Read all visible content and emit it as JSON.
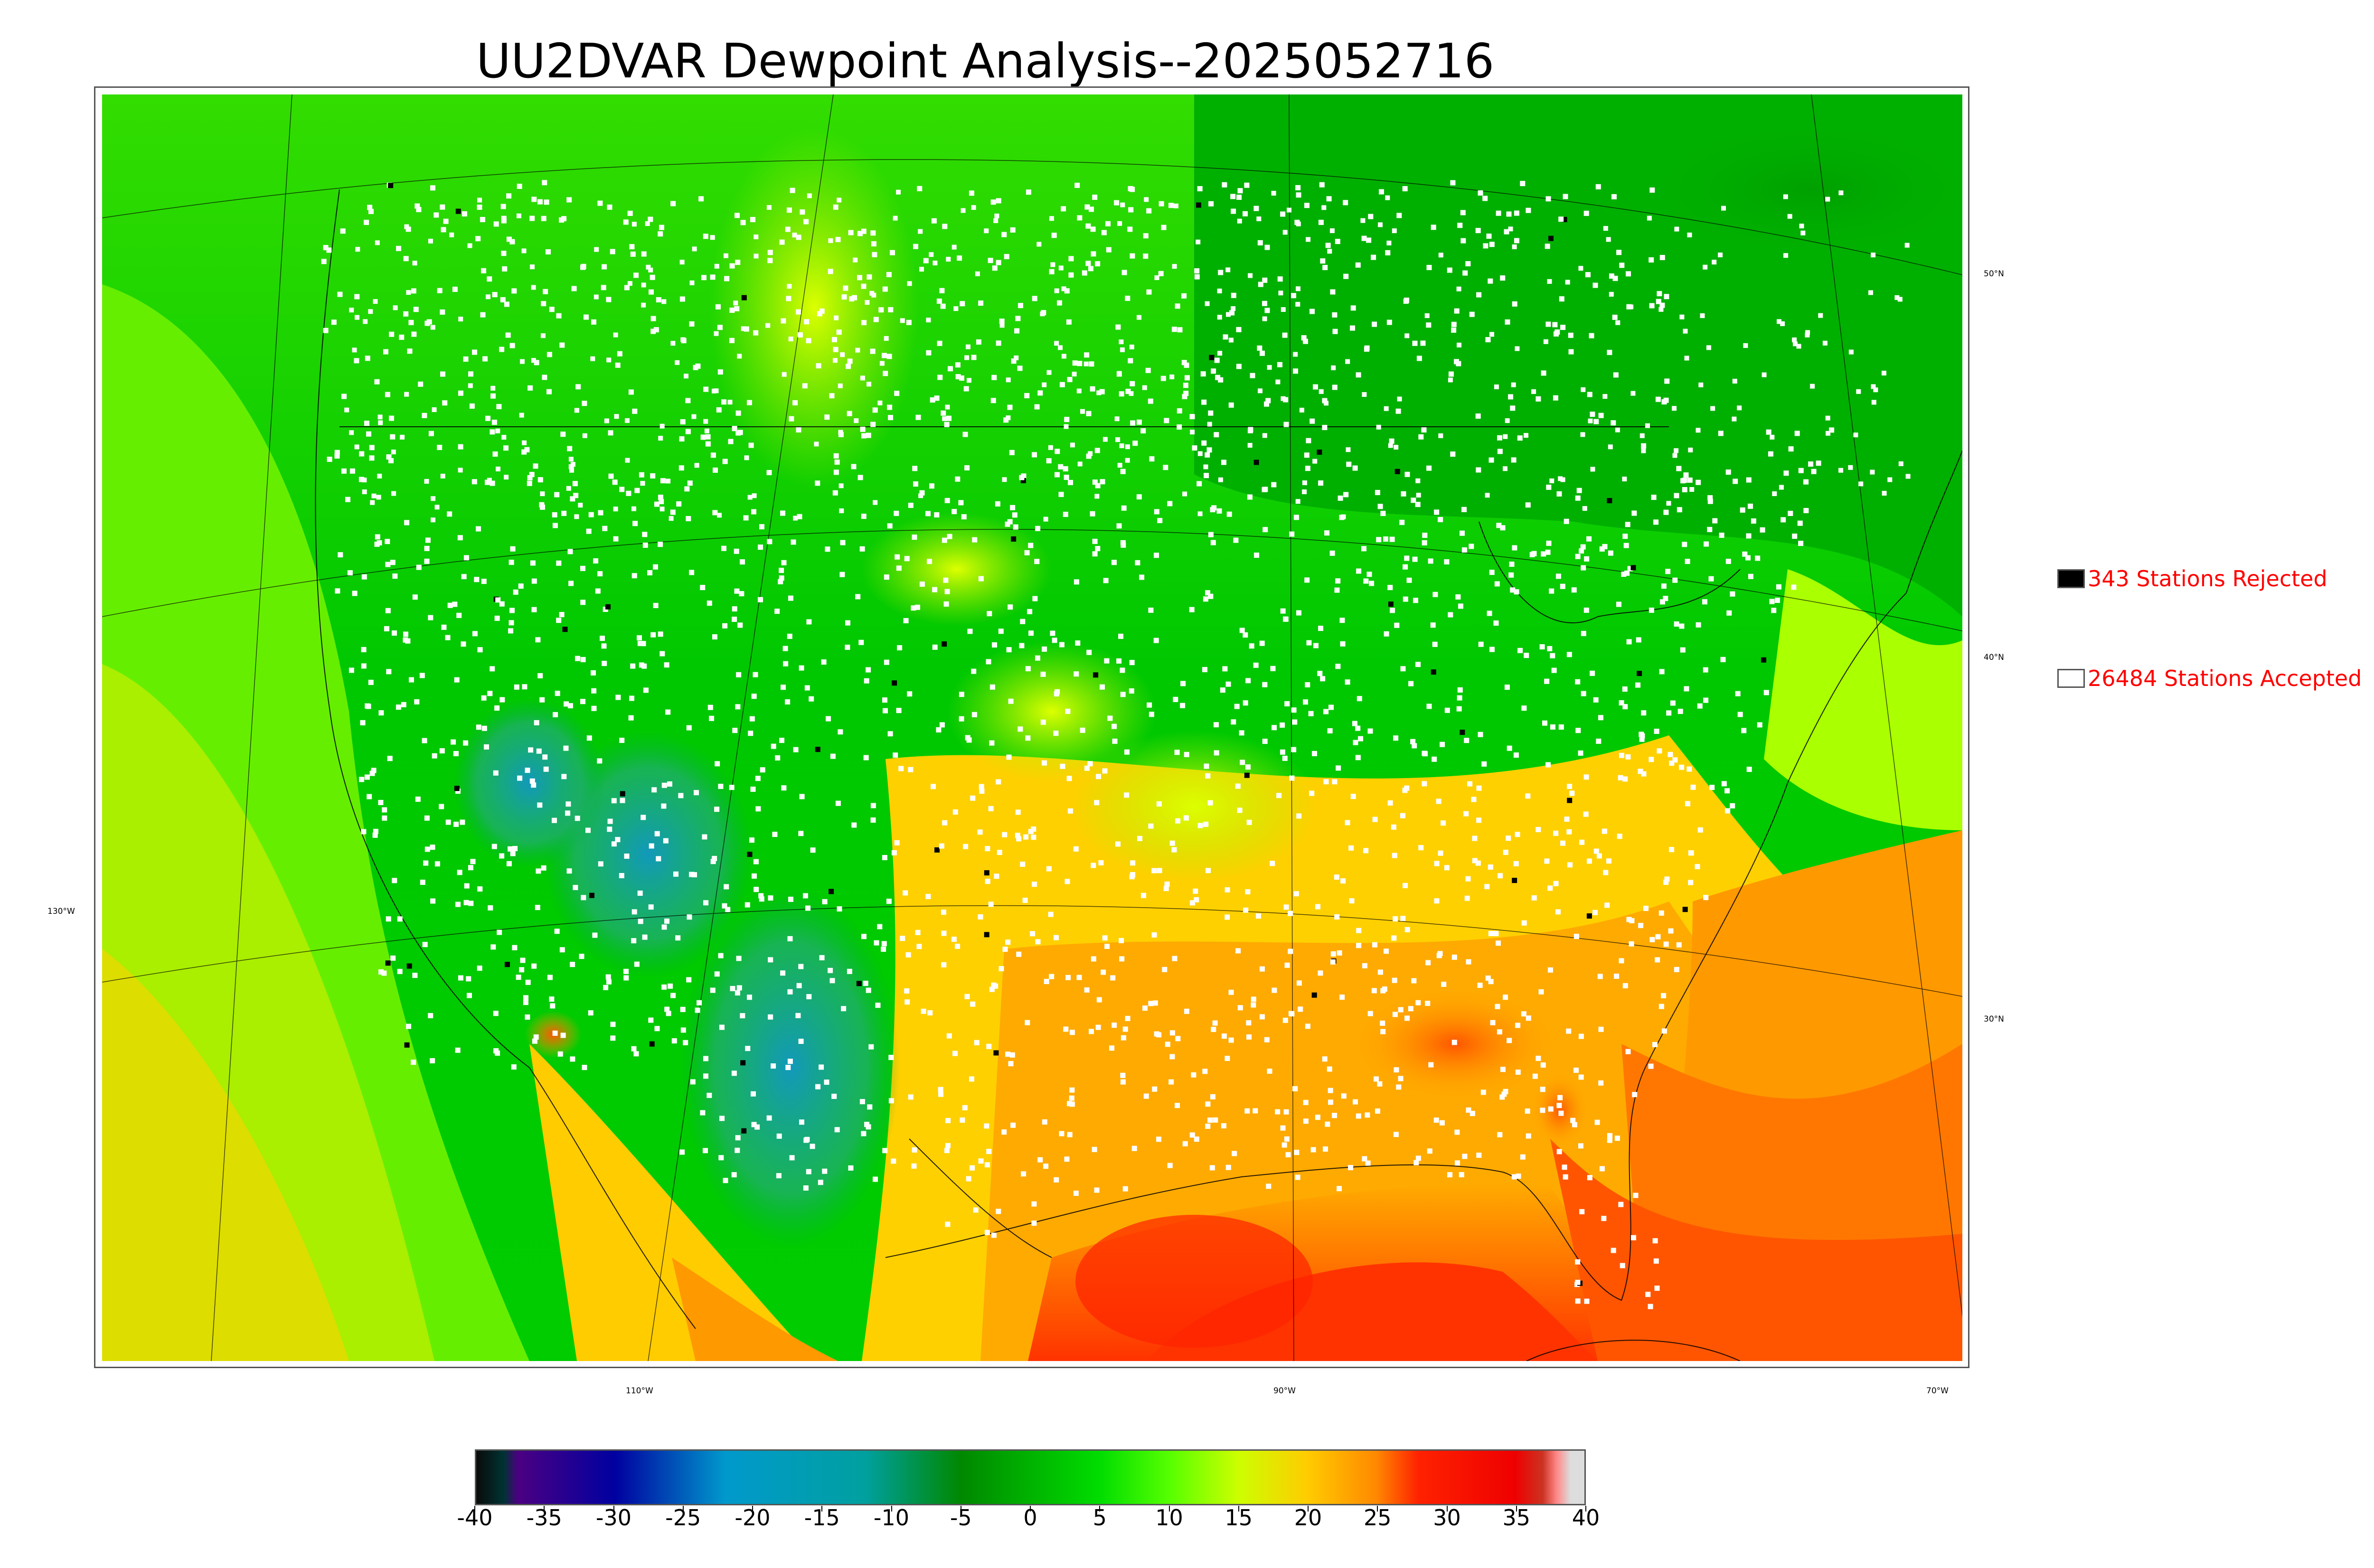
{
  "title": "UU2DVAR Dewpoint Analysis--2025052716",
  "map": {
    "latitude_labels": [
      "50°N",
      "40°N",
      "30°N"
    ],
    "longitude_labels": [
      "130°W",
      "110°W",
      "90°W",
      "70°W"
    ]
  },
  "legend": {
    "rejected_label": "343 Stations Rejected",
    "accepted_label": "26484 Stations Accepted",
    "rejected_color": "#000000",
    "accepted_color": "#ffffff",
    "text_color": "#ff0000"
  },
  "colorbar": {
    "min": -40,
    "max": 40,
    "ticks": [
      "-40",
      "-35",
      "-30",
      "-25",
      "-20",
      "-15",
      "-10",
      "-5",
      "0",
      "5",
      "10",
      "15",
      "20",
      "25",
      "30",
      "35",
      "40"
    ],
    "stops": [
      {
        "value": -40,
        "color": "#0a0a0a"
      },
      {
        "value": -38,
        "color": "#003333"
      },
      {
        "value": -37,
        "color": "#4b0082"
      },
      {
        "value": -30,
        "color": "#0000a0"
      },
      {
        "value": -22,
        "color": "#0099cc"
      },
      {
        "value": -12,
        "color": "#00a0a0"
      },
      {
        "value": -5,
        "color": "#008800"
      },
      {
        "value": 5,
        "color": "#00dd00"
      },
      {
        "value": 10,
        "color": "#55ff00"
      },
      {
        "value": 15,
        "color": "#ccff00"
      },
      {
        "value": 20,
        "color": "#ffcc00"
      },
      {
        "value": 25,
        "color": "#ff8800"
      },
      {
        "value": 28,
        "color": "#ff2200"
      },
      {
        "value": 35,
        "color": "#ee0000"
      },
      {
        "value": 37,
        "color": "#cc3322"
      },
      {
        "value": 38,
        "color": "#ff8888"
      },
      {
        "value": 39,
        "color": "#dddddd"
      }
    ]
  }
}
